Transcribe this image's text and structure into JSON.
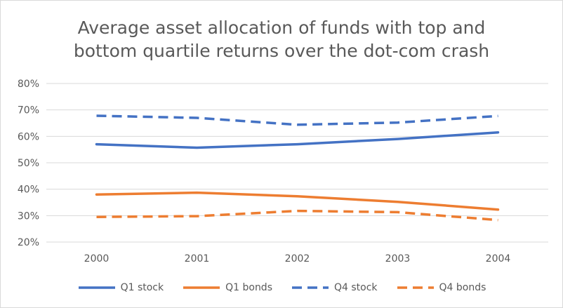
{
  "chart_data": {
    "type": "line",
    "title_lines": [
      "Average asset allocation of funds with top and",
      "bottom quartile returns over the dot-com crash"
    ],
    "xlabel": "",
    "ylabel": "",
    "x": [
      "2000",
      "2001",
      "2002",
      "2003",
      "2004"
    ],
    "ylim": [
      0.2,
      0.8
    ],
    "yticks": [
      0.2,
      0.3,
      0.4,
      0.5,
      0.6,
      0.7,
      0.8
    ],
    "ytick_labels": [
      "20%",
      "30%",
      "40%",
      "50%",
      "60%",
      "70%",
      "80%"
    ],
    "grid": true,
    "legend_position": "bottom",
    "series": [
      {
        "name": "Q1 stock",
        "values": [
          0.57,
          0.557,
          0.57,
          0.59,
          0.615
        ],
        "color": "#4472c4",
        "dashed": false
      },
      {
        "name": "Q1 bonds",
        "values": [
          0.38,
          0.387,
          0.373,
          0.352,
          0.323
        ],
        "color": "#ed7d31",
        "dashed": false
      },
      {
        "name": "Q4 stock",
        "values": [
          0.678,
          0.67,
          0.644,
          0.652,
          0.677
        ],
        "color": "#4472c4",
        "dashed": true
      },
      {
        "name": "Q4 bonds",
        "values": [
          0.295,
          0.298,
          0.318,
          0.313,
          0.283
        ],
        "color": "#ed7d31",
        "dashed": true
      }
    ]
  }
}
